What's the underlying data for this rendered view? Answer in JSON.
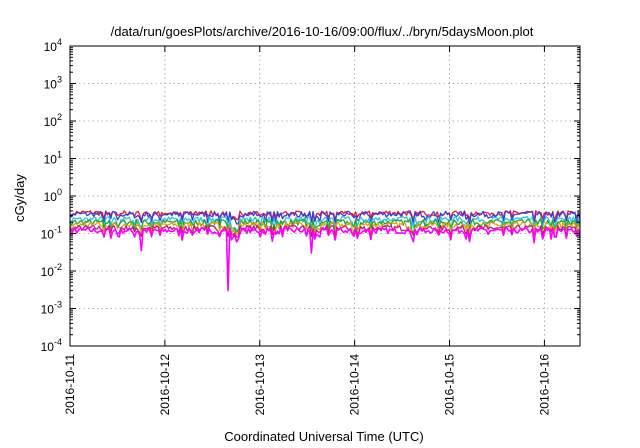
{
  "chart_data": {
    "type": "line",
    "title": "/data/run/goesPlots/archive/2016-10-16/09:00/flux/../bryn/5daysMoon.plot",
    "xlabel": "Coordinated Universal Time (UTC)",
    "ylabel": "cGy/day",
    "yscale": "log",
    "ylim": [
      0.0001,
      10000
    ],
    "y_ticks": [
      {
        "base": "10",
        "exp": "-4",
        "value": 0.0001
      },
      {
        "base": "10",
        "exp": "-3",
        "value": 0.001
      },
      {
        "base": "10",
        "exp": "-2",
        "value": 0.01
      },
      {
        "base": "10",
        "exp": "-1",
        "value": 0.1
      },
      {
        "base": "10",
        "exp": "0",
        "value": 1
      },
      {
        "base": "10",
        "exp": "1",
        "value": 10
      },
      {
        "base": "10",
        "exp": "2",
        "value": 100
      },
      {
        "base": "10",
        "exp": "3",
        "value": 1000
      },
      {
        "base": "10",
        "exp": "4",
        "value": 10000
      }
    ],
    "xlim": [
      "2016-10-11",
      "2016-10-16 09:00"
    ],
    "x_ticks": [
      "2016-10-11",
      "2016-10-12",
      "2016-10-13",
      "2016-10-14",
      "2016-10-15",
      "2016-10-16"
    ],
    "grid": true,
    "series": [
      {
        "color": "#e8182c",
        "level": 0.36,
        "lowest": 0.21
      },
      {
        "color": "#3b3bd6",
        "level": 0.33,
        "lowest": 0.18
      },
      {
        "color": "#29c7d6",
        "level": 0.24,
        "lowest": 0.12
      },
      {
        "color": "#2ca02c",
        "level": 0.2,
        "lowest": 0.1
      },
      {
        "color": "#d6a020",
        "level": 0.17,
        "lowest": 0.09
      },
      {
        "color": "#c0187a",
        "level": 0.14,
        "lowest": 0.08
      },
      {
        "color": "#ff00ff",
        "level": 0.12,
        "lowest": 0.003
      }
    ],
    "dips": [
      {
        "x": "2016-10-11 18:00",
        "value": 0.035
      },
      {
        "x": "2016-10-12 16:00",
        "value": 0.003
      },
      {
        "x": "2016-10-13 13:00",
        "value": 0.03
      },
      {
        "x": "2016-10-16 02:30",
        "value": 0.08
      }
    ]
  }
}
